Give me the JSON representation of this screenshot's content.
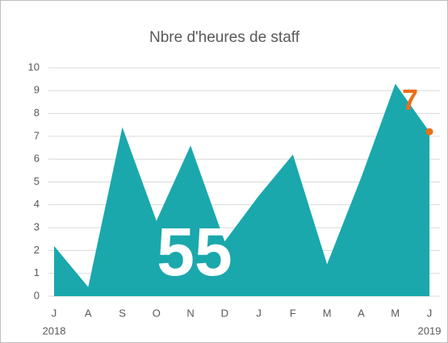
{
  "chart_data": {
    "type": "area",
    "title": "Nbre d'heures de staff",
    "categories": [
      "J",
      "A",
      "S",
      "O",
      "N",
      "D",
      "J",
      "F",
      "M",
      "A",
      "M",
      "J"
    ],
    "group_labels": [
      "2018",
      "2019"
    ],
    "values": [
      2.2,
      0.4,
      7.4,
      3.3,
      6.6,
      2.4,
      4.4,
      6.2,
      1.4,
      5.2,
      9.3,
      7.2
    ],
    "value_labels": [
      null,
      null,
      null,
      null,
      null,
      null,
      null,
      null,
      null,
      null,
      null,
      "7"
    ],
    "label_color": "#e8711a",
    "annotation": "55",
    "color": "#1aa8ac",
    "ylim": [
      0,
      10
    ],
    "yticks": [
      0,
      1,
      2,
      3,
      4,
      5,
      6,
      7,
      8,
      9,
      10
    ],
    "grid": true
  }
}
